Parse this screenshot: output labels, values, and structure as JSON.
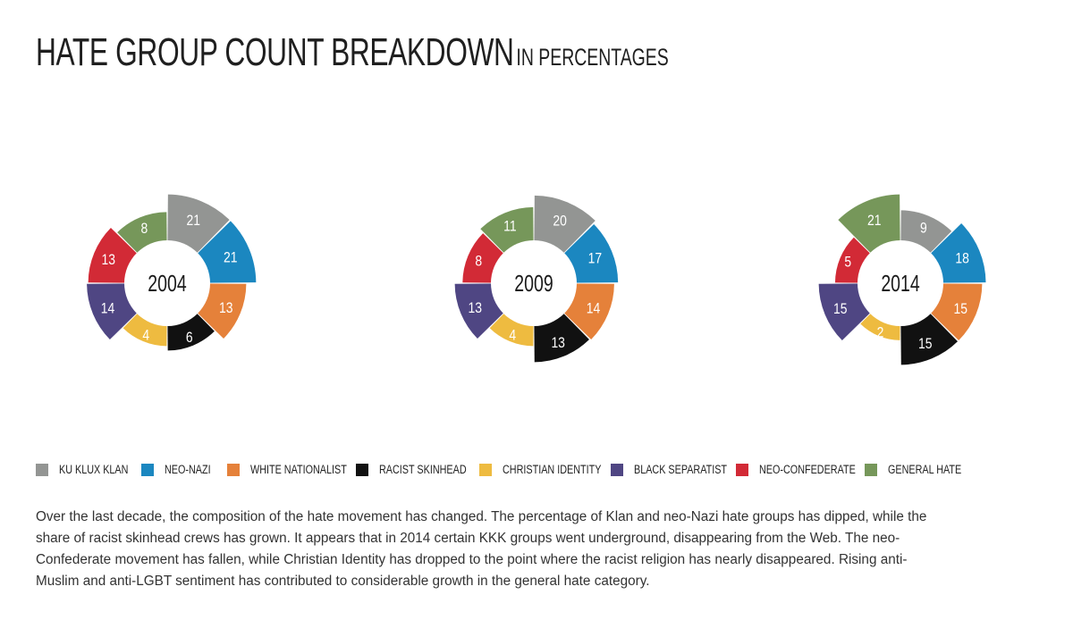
{
  "title": "HATE GROUP COUNT BREAKDOWN",
  "subtitle": "IN PERCENTAGES",
  "colors": {
    "ku_klux_klan": "#939593",
    "neo_nazi": "#1b87c0",
    "white_nationalist": "#e5813a",
    "racist_skinhead": "#111111",
    "christian_identity": "#eebb40",
    "black_separatist": "#4f4683",
    "neo_confederate": "#d22a36",
    "general_hate": "#76975a"
  },
  "legend": [
    {
      "label": "KU KLUX KLAN",
      "key": "ku_klux_klan"
    },
    {
      "label": "NEO-NAZI",
      "key": "neo_nazi"
    },
    {
      "label": "WHITE NATIONALIST",
      "key": "white_nationalist"
    },
    {
      "label": "RACIST SKINHEAD",
      "key": "racist_skinhead"
    },
    {
      "label": "CHRISTIAN IDENTITY",
      "key": "christian_identity"
    },
    {
      "label": "BLACK SEPARATIST",
      "key": "black_separatist"
    },
    {
      "label": "NEO-CONFEDERATE",
      "key": "neo_confederate"
    },
    {
      "label": "GENERAL HATE",
      "key": "general_hate"
    }
  ],
  "chart_data": [
    {
      "type": "polar-area",
      "center_label": "2004",
      "categories": [
        "KU KLUX KLAN",
        "NEO-NAZI",
        "WHITE NATIONALIST",
        "RACIST SKINHEAD",
        "CHRISTIAN IDENTITY",
        "BLACK SEPARATIST",
        "NEO-CONFEDERATE",
        "GENERAL HATE"
      ],
      "values": [
        21,
        21,
        13,
        6,
        4,
        14,
        13,
        8
      ]
    },
    {
      "type": "polar-area",
      "center_label": "2009",
      "categories": [
        "KU KLUX KLAN",
        "NEO-NAZI",
        "WHITE NATIONALIST",
        "RACIST SKINHEAD",
        "CHRISTIAN IDENTITY",
        "BLACK SEPARATIST",
        "NEO-CONFEDERATE",
        "GENERAL HATE"
      ],
      "values": [
        20,
        17,
        14,
        13,
        4,
        13,
        8,
        11
      ]
    },
    {
      "type": "polar-area",
      "center_label": "2014",
      "categories": [
        "KU KLUX KLAN",
        "NEO-NAZI",
        "WHITE NATIONALIST",
        "RACIST SKINHEAD",
        "CHRISTIAN IDENTITY",
        "BLACK SEPARATIST",
        "NEO-CONFEDERATE",
        "GENERAL HATE"
      ],
      "values": [
        9,
        18,
        15,
        15,
        2,
        15,
        5,
        21
      ]
    }
  ],
  "caption": "Over the last decade, the composition of the hate movement has changed. The percentage of Klan and neo-Nazi hate groups has dipped, while the share of racist skinhead crews has grown. It appears that in 2014 certain KKK groups went underground, disappearing from the Web. The neo-Confederate movement has fallen, while Christian Identity has dropped to the point where the racist religion has nearly disappeared. Rising anti-Muslim and anti-LGBT sentiment has contributed to considerable growth in the general hate category."
}
